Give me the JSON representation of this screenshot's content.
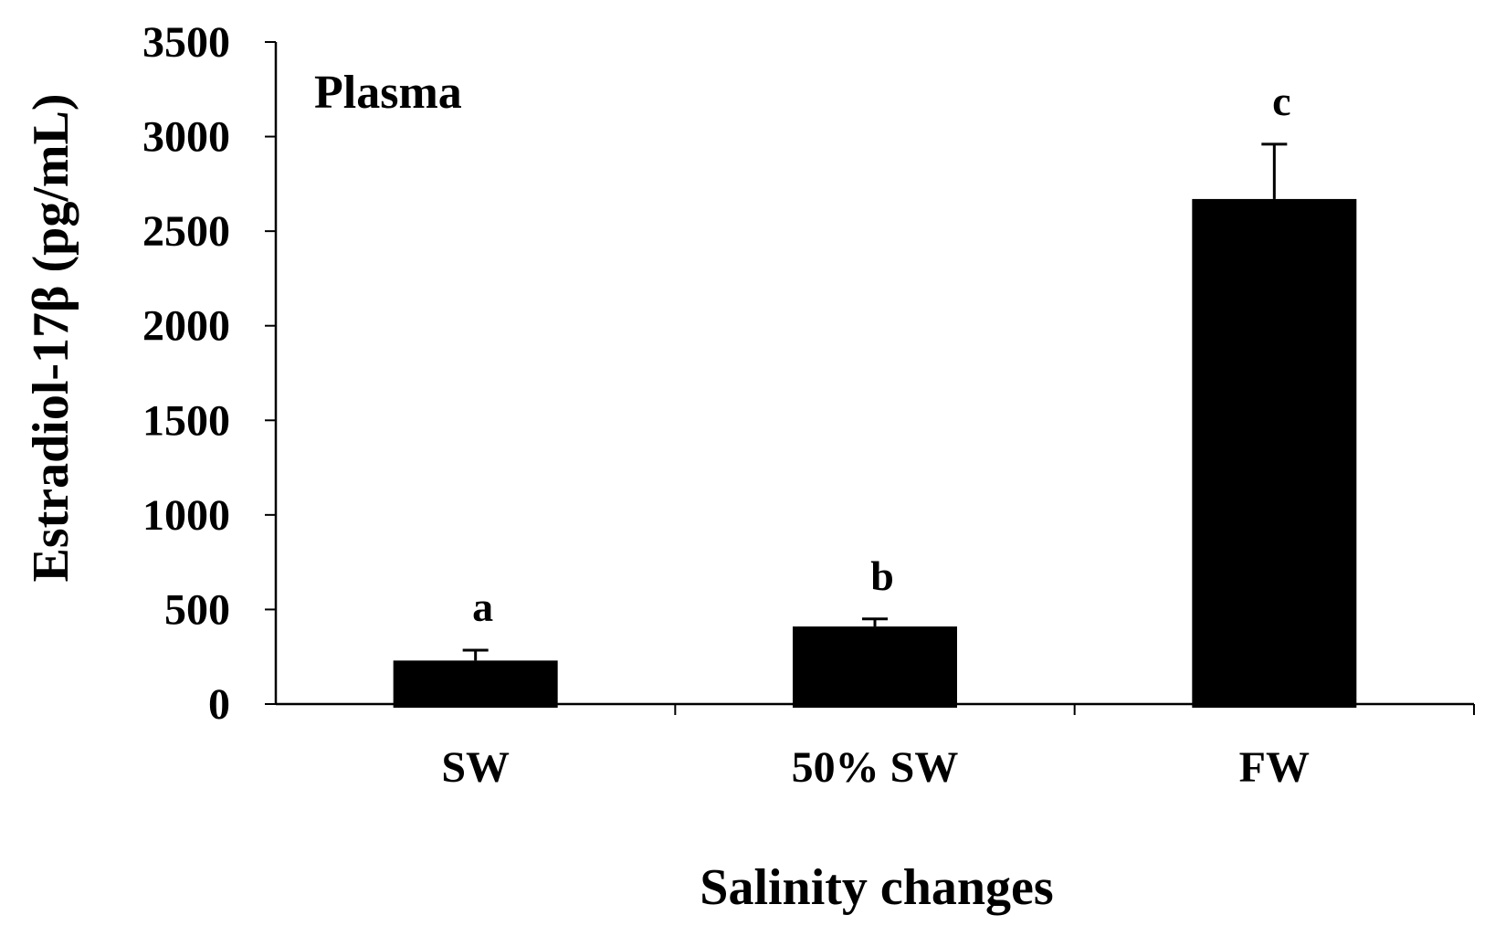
{
  "chart_data": {
    "type": "bar",
    "title": "Plasma",
    "xlabel": "Salinity changes",
    "ylabel": "Estradiol-17β (pg/mL)",
    "ylim": [
      0,
      3500
    ],
    "yticks": [
      0,
      500,
      1000,
      1500,
      2000,
      2500,
      3000,
      3500
    ],
    "ytick_labels": [
      "0",
      "500",
      "1000",
      "1500",
      "2000",
      "2500",
      "3000",
      "3500"
    ],
    "categories": [
      "SW",
      "50% SW",
      "FW"
    ],
    "values": [
      230,
      410,
      2670
    ],
    "errors": [
      55,
      40,
      290
    ],
    "significance": [
      "a",
      "b",
      "c"
    ],
    "bar_color": "#000000",
    "grid": false,
    "legend": "none"
  }
}
